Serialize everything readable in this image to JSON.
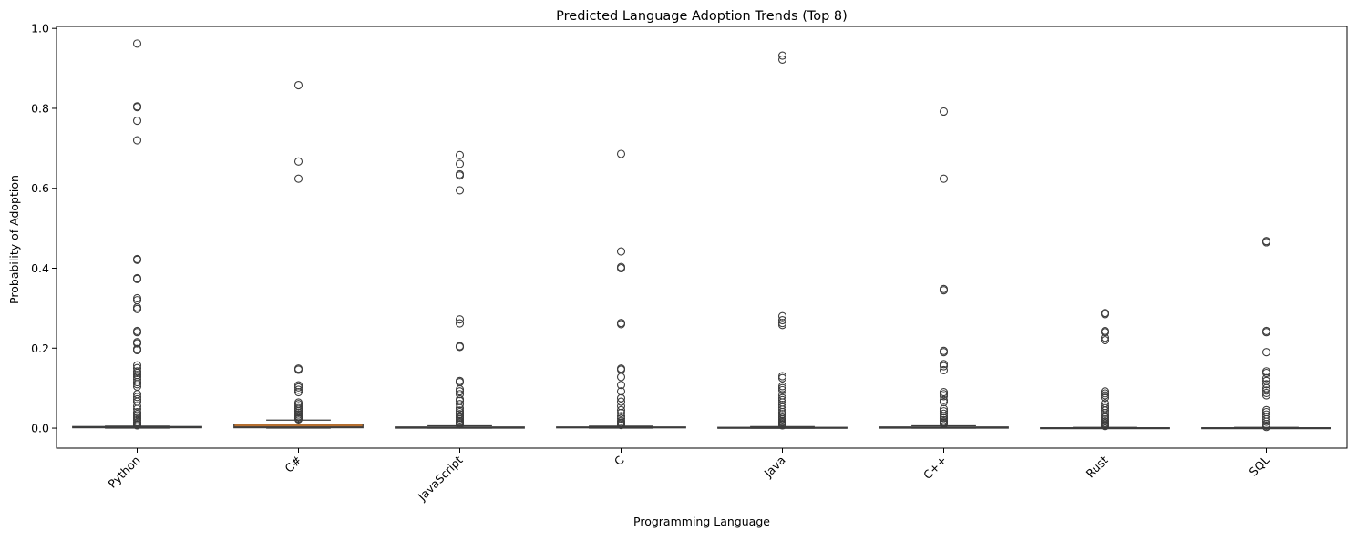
{
  "chart_data": {
    "type": "box",
    "title": "Predicted Language Adoption Trends (Top 8)",
    "xlabel": "Programming Language",
    "ylabel": "Probability of Adoption",
    "ylim": [
      -0.05,
      1.005
    ],
    "yticks": [
      0.0,
      0.2,
      0.4,
      0.6,
      0.8,
      1.0
    ],
    "ytick_labels": [
      "0.0",
      "0.2",
      "0.4",
      "0.6",
      "0.8",
      "1.0"
    ],
    "grid": false,
    "legend": "none",
    "categories": [
      "Python",
      "C#",
      "JavaScript",
      "C",
      "Java",
      "C++",
      "Rust",
      "SQL"
    ],
    "boxes": [
      {
        "category": "Python",
        "color": "#3274a1",
        "q1": 0.001,
        "median": 0.002,
        "q3": 0.004,
        "whisker_low": 0.0,
        "whisker_high": 0.005,
        "outliers": [
          0.962,
          0.805,
          0.803,
          0.769,
          0.72,
          0.423,
          0.421,
          0.375,
          0.373,
          0.325,
          0.32,
          0.302,
          0.298,
          0.243,
          0.24,
          0.215,
          0.212,
          0.198,
          0.195,
          0.157,
          0.15,
          0.142,
          0.138,
          0.133,
          0.128,
          0.122,
          0.115,
          0.11,
          0.104,
          0.085,
          0.078,
          0.072,
          0.066,
          0.055,
          0.048,
          0.04,
          0.035,
          0.03,
          0.025,
          0.02,
          0.015,
          0.012,
          0.009,
          0.007
        ]
      },
      {
        "category": "C#",
        "color": "#e1812c",
        "q1": 0.001,
        "median": 0.004,
        "q3": 0.01,
        "whisker_low": 0.0,
        "whisker_high": 0.02,
        "outliers": [
          0.858,
          0.667,
          0.624,
          0.149,
          0.146,
          0.107,
          0.102,
          0.096,
          0.09,
          0.064,
          0.06,
          0.055,
          0.05,
          0.046,
          0.042,
          0.038,
          0.034,
          0.03,
          0.027,
          0.024,
          0.022
        ]
      },
      {
        "category": "JavaScript",
        "color": "#3a923a",
        "q1": 0.0,
        "median": 0.001,
        "q3": 0.003,
        "whisker_low": 0.0,
        "whisker_high": 0.006,
        "outliers": [
          0.683,
          0.661,
          0.635,
          0.632,
          0.595,
          0.272,
          0.262,
          0.205,
          0.203,
          0.118,
          0.115,
          0.097,
          0.092,
          0.085,
          0.072,
          0.068,
          0.06,
          0.05,
          0.044,
          0.04,
          0.035,
          0.03,
          0.026,
          0.022,
          0.018,
          0.015,
          0.012,
          0.009
        ]
      },
      {
        "category": "C",
        "color": "#c03d3e",
        "q1": 0.001,
        "median": 0.002,
        "q3": 0.003,
        "whisker_low": 0.0,
        "whisker_high": 0.005,
        "outliers": [
          0.686,
          0.442,
          0.403,
          0.4,
          0.263,
          0.26,
          0.149,
          0.146,
          0.128,
          0.108,
          0.092,
          0.075,
          0.066,
          0.055,
          0.045,
          0.038,
          0.03,
          0.024,
          0.018,
          0.014,
          0.011,
          0.008
        ]
      },
      {
        "category": "Java",
        "color": "#9372b2",
        "q1": 0.0,
        "median": 0.0,
        "q3": 0.002,
        "whisker_low": 0.0,
        "whisker_high": 0.004,
        "outliers": [
          0.932,
          0.922,
          0.28,
          0.27,
          0.263,
          0.258,
          0.13,
          0.125,
          0.105,
          0.1,
          0.095,
          0.082,
          0.075,
          0.07,
          0.064,
          0.058,
          0.052,
          0.046,
          0.04,
          0.035,
          0.03,
          0.026,
          0.022,
          0.018,
          0.015,
          0.012,
          0.009,
          0.007
        ]
      },
      {
        "category": "C++",
        "color": "#845b53",
        "q1": 0.0,
        "median": 0.001,
        "q3": 0.003,
        "whisker_low": 0.0,
        "whisker_high": 0.006,
        "outliers": [
          0.792,
          0.624,
          0.348,
          0.345,
          0.193,
          0.19,
          0.16,
          0.155,
          0.145,
          0.09,
          0.085,
          0.08,
          0.07,
          0.065,
          0.048,
          0.042,
          0.036,
          0.03,
          0.025,
          0.02,
          0.016,
          0.013,
          0.01
        ]
      },
      {
        "category": "Rust",
        "color": "#d684bd",
        "q1": 0.0,
        "median": 0.0,
        "q3": 0.001,
        "whisker_low": 0.0,
        "whisker_high": 0.002,
        "outliers": [
          0.288,
          0.285,
          0.243,
          0.24,
          0.226,
          0.22,
          0.092,
          0.087,
          0.082,
          0.076,
          0.062,
          0.055,
          0.05,
          0.044,
          0.038,
          0.032,
          0.027,
          0.022,
          0.017,
          0.013,
          0.01,
          0.007,
          0.005
        ]
      },
      {
        "category": "SQL",
        "color": "#7f7f7f",
        "q1": 0.0,
        "median": 0.0,
        "q3": 0.001,
        "whisker_low": 0.0,
        "whisker_high": 0.002,
        "outliers": [
          0.468,
          0.465,
          0.243,
          0.24,
          0.19,
          0.142,
          0.138,
          0.125,
          0.118,
          0.11,
          0.1,
          0.094,
          0.088,
          0.082,
          0.045,
          0.04,
          0.034,
          0.028,
          0.022,
          0.016,
          0.01,
          0.006,
          0.003
        ]
      }
    ]
  }
}
